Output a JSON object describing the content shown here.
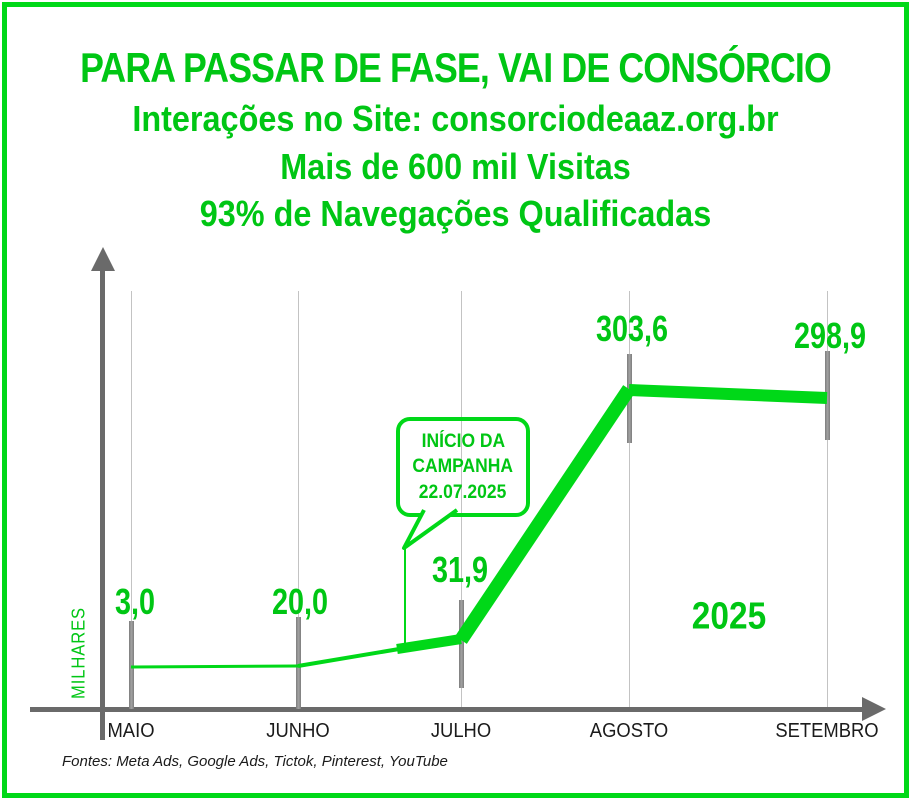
{
  "header": {
    "title": "PARA PASSAR DE FASE, VAI DE CONSÓRCIO",
    "subtitle_site": "Interações no Site: consorciodeaaz.org.br",
    "subtitle_visits": "Mais de 600 mil Visitas",
    "subtitle_qualified": "93% de Navegações Qualificadas"
  },
  "chart_data": {
    "type": "line",
    "title": "PARA PASSAR DE FASE, VAI DE CONSÓRCIO",
    "categories": [
      "MAIO",
      "JUNHO",
      "JULHO",
      "AGOSTO",
      "SETEMBRO"
    ],
    "values": [
      3.0,
      20.0,
      31.9,
      303.6,
      298.9
    ],
    "value_labels": [
      "3,0",
      "20,0",
      "31,9",
      "303,6",
      "298,9"
    ],
    "ylabel": "MILHARES",
    "xlabel": "",
    "year_annotation": "2025",
    "annotation_callout": {
      "lines": [
        "INÍCIO DA",
        "CAMPANHA",
        "22.07.2025"
      ],
      "points_to": "between JUNHO and JULHO (campaign start 22.07.2025)"
    },
    "legend": "none",
    "grid": "vertical gridlines at each month",
    "axis_style": "gray arrows up (y) and right (x)"
  },
  "footer": {
    "sources": "Fontes: Meta Ads, Google Ads, Tictok, Pinterest, YouTube"
  },
  "colors": {
    "green_text": "#00C614",
    "green_shape": "#00D818",
    "axis": "#6A6A6A",
    "bar": "#8D8D8D",
    "grid": "#C3C3C3",
    "text_dark": "#1B1B1B"
  }
}
